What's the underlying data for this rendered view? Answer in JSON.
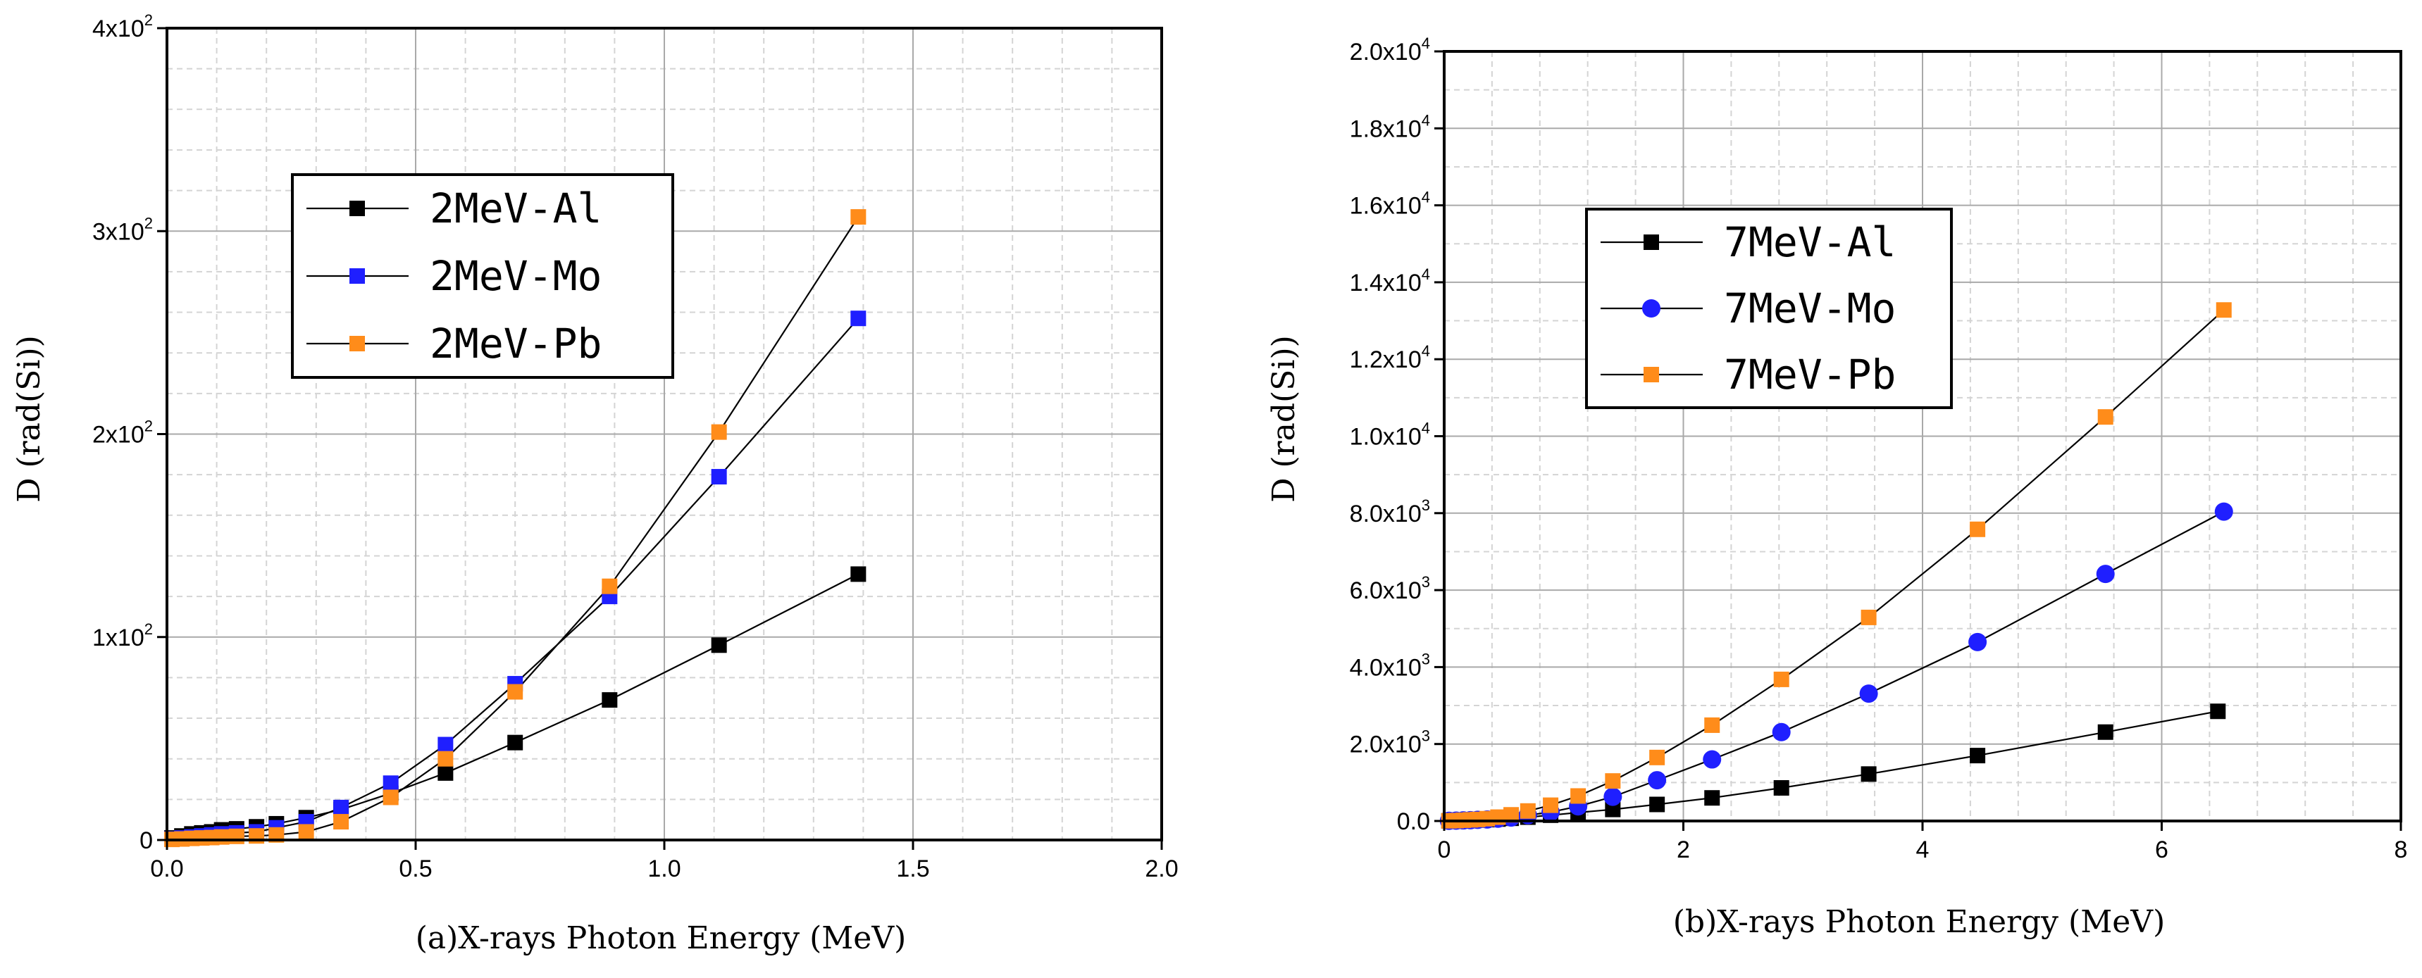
{
  "chart_data": [
    {
      "type": "scatter",
      "panel": "a",
      "xlabel": "(a)X-rays Photon Energy (MeV)",
      "ylabel": "D (rad(Si))",
      "xlim": [
        0,
        2.0
      ],
      "ylim": [
        0,
        400
      ],
      "x_ticks": [
        "0.0",
        "0.5",
        "1.0",
        "1.5",
        "2.0"
      ],
      "x_tick_values": [
        0,
        0.5,
        1.0,
        1.5,
        2.0
      ],
      "y_ticks": [
        {
          "value": 0,
          "base": "0",
          "exp": ""
        },
        {
          "value": 100,
          "base": "1x10",
          "exp": "2"
        },
        {
          "value": 200,
          "base": "2x10",
          "exp": "2"
        },
        {
          "value": 300,
          "base": "3x10",
          "exp": "2"
        },
        {
          "value": 400,
          "base": "4x10",
          "exp": "2"
        }
      ],
      "grid": true,
      "legend_position": "top-left",
      "series": [
        {
          "name": "2MeV-Al",
          "color": "#000000",
          "marker": "square",
          "x": [
            0.01,
            0.03,
            0.05,
            0.07,
            0.09,
            0.11,
            0.14,
            0.18,
            0.22,
            0.28,
            0.35,
            0.45,
            0.56,
            0.7,
            0.89,
            1.11,
            1.39
          ],
          "y": [
            1,
            2,
            3,
            3.5,
            4,
            5,
            5.5,
            6.5,
            8,
            11,
            15,
            23,
            33,
            48,
            69,
            96,
            131
          ]
        },
        {
          "name": "2MeV-Mo",
          "color": "#1f1fff",
          "marker": "square",
          "x": [
            0.01,
            0.03,
            0.05,
            0.07,
            0.09,
            0.11,
            0.14,
            0.18,
            0.22,
            0.28,
            0.35,
            0.45,
            0.56,
            0.7,
            0.89,
            1.11,
            1.39
          ],
          "y": [
            0.5,
            1,
            1.5,
            2,
            2.5,
            3,
            3.5,
            4,
            6,
            9,
            16,
            28,
            47,
            77,
            120,
            179,
            257
          ]
        },
        {
          "name": "2MeV-Pb",
          "color": "#ff8c1a",
          "marker": "square",
          "x": [
            0.01,
            0.03,
            0.05,
            0.07,
            0.09,
            0.11,
            0.14,
            0.18,
            0.22,
            0.28,
            0.35,
            0.45,
            0.56,
            0.7,
            0.89,
            1.11,
            1.39
          ],
          "y": [
            0.3,
            0.5,
            0.8,
            1,
            1.2,
            1.5,
            1.8,
            2,
            2.5,
            4,
            9,
            21,
            40,
            73,
            125,
            201,
            307
          ]
        }
      ]
    },
    {
      "type": "scatter",
      "panel": "b",
      "xlabel": "(b)X-rays Photon Energy (MeV)",
      "ylabel": "D (rad(Si))",
      "xlim": [
        0,
        8
      ],
      "ylim": [
        0,
        20000
      ],
      "x_ticks": [
        "0",
        "2",
        "4",
        "6",
        "8"
      ],
      "x_tick_values": [
        0,
        2,
        4,
        6,
        8
      ],
      "y_ticks": [
        {
          "value": 0,
          "base": "0.0",
          "exp": ""
        },
        {
          "value": 2000,
          "base": "2.0x10",
          "exp": "3"
        },
        {
          "value": 4000,
          "base": "4.0x10",
          "exp": "3"
        },
        {
          "value": 6000,
          "base": "6.0x10",
          "exp": "3"
        },
        {
          "value": 8000,
          "base": "8.0x10",
          "exp": "3"
        },
        {
          "value": 10000,
          "base": "1.0x10",
          "exp": "4"
        },
        {
          "value": 12000,
          "base": "1.2x10",
          "exp": "4"
        },
        {
          "value": 14000,
          "base": "1.4x10",
          "exp": "4"
        },
        {
          "value": 16000,
          "base": "1.6x10",
          "exp": "4"
        },
        {
          "value": 18000,
          "base": "1.8x10",
          "exp": "4"
        },
        {
          "value": 20000,
          "base": "2.0x10",
          "exp": "4"
        }
      ],
      "grid": true,
      "legend_position": "top-left",
      "series": [
        {
          "name": "7MeV-Al",
          "color": "#000000",
          "marker": "square",
          "x": [
            0.04,
            0.1,
            0.16,
            0.22,
            0.28,
            0.36,
            0.45,
            0.56,
            0.7,
            0.89,
            1.12,
            1.41,
            1.78,
            2.24,
            2.82,
            3.55,
            4.46,
            5.53,
            6.47
          ],
          "y": [
            5,
            10,
            15,
            20,
            25,
            35,
            50,
            70,
            100,
            150,
            220,
            300,
            430,
            600,
            860,
            1220,
            1700,
            2310,
            2850
          ]
        },
        {
          "name": "7MeV-Mo",
          "color": "#1f1fff",
          "marker": "circle",
          "x": [
            0.04,
            0.1,
            0.16,
            0.22,
            0.28,
            0.36,
            0.45,
            0.56,
            0.7,
            0.89,
            1.12,
            1.41,
            1.78,
            2.24,
            2.82,
            3.55,
            4.46,
            5.53,
            6.52
          ],
          "y": [
            5,
            10,
            15,
            20,
            30,
            40,
            60,
            90,
            150,
            230,
            380,
            630,
            1060,
            1600,
            2310,
            3310,
            4650,
            6420,
            8040
          ]
        },
        {
          "name": "7MeV-Pb",
          "color": "#ff8c1a",
          "marker": "square",
          "x": [
            0.04,
            0.1,
            0.16,
            0.22,
            0.28,
            0.36,
            0.45,
            0.56,
            0.7,
            0.89,
            1.12,
            1.41,
            1.78,
            2.24,
            2.82,
            3.55,
            4.46,
            5.53,
            6.52
          ],
          "y": [
            5,
            10,
            20,
            30,
            40,
            60,
            100,
            160,
            260,
            410,
            650,
            1040,
            1650,
            2490,
            3680,
            5290,
            7580,
            10500,
            13280
          ]
        }
      ]
    }
  ]
}
